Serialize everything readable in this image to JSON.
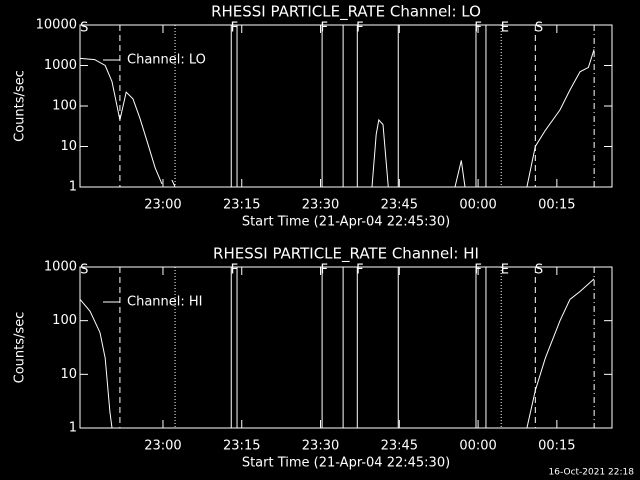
{
  "chart_data": [
    {
      "type": "line",
      "title": "RHESSI PARTICLE_RATE Channel: LO",
      "xlabel": "Start Time (21-Apr-04 22:45:30)",
      "ylabel": "Counts/sec",
      "x": [
        -15.8,
        -13.0,
        -11.0,
        -9.7,
        -8.2,
        -7.0,
        -5.7,
        -4.4,
        -2.9,
        -1.5,
        -0.2,
        null,
        1.7,
        2.3,
        null,
        39.8,
        40.6,
        41.1,
        41.9,
        42.9,
        null,
        55.6,
        56.8,
        57.5,
        null,
        69.3,
        70.9,
        72.8,
        75.6,
        77.5,
        79.4,
        81.0,
        82.1
      ],
      "series": [
        {
          "name": "Channel: LO",
          "color": "#ffffff",
          "values": [
            1500,
            1400,
            1000,
            400,
            45,
            220,
            150,
            50,
            12,
            3,
            1.2,
            null,
            1.5,
            1,
            null,
            1,
            20,
            45,
            35,
            1,
            null,
            1,
            4.5,
            1,
            null,
            1,
            10,
            25,
            80,
            250,
            700,
            900,
            2500
          ]
        }
      ],
      "xlim": [
        -15.8,
        85.5
      ],
      "xticks": [
        {
          "value": 0,
          "label": "23:00"
        },
        {
          "value": 15,
          "label": "23:15"
        },
        {
          "value": 30,
          "label": "23:30"
        },
        {
          "value": 45,
          "label": "23:45"
        },
        {
          "value": 60,
          "label": "00:00"
        },
        {
          "value": 75,
          "label": "00:15"
        }
      ],
      "ylim": [
        1,
        10000
      ],
      "yticks": [
        1,
        10,
        100,
        1000,
        10000
      ],
      "log_y": true,
      "vlines": [
        {
          "x": -8.2,
          "style": "dashed"
        },
        {
          "x": 2.3,
          "style": "dotted"
        },
        {
          "x": 13.0,
          "style": "solid"
        },
        {
          "x": 14.1,
          "style": "solid"
        },
        {
          "x": 30.3,
          "style": "solid"
        },
        {
          "x": 34.3,
          "style": "solid"
        },
        {
          "x": 37.0,
          "style": "solid"
        },
        {
          "x": 44.8,
          "style": "solid"
        },
        {
          "x": 59.6,
          "style": "solid"
        },
        {
          "x": 61.5,
          "style": "solid"
        },
        {
          "x": 64.4,
          "style": "dotted"
        },
        {
          "x": 70.9,
          "style": "dashed"
        },
        {
          "x": 82.1,
          "style": "dashdot"
        }
      ],
      "annotations": [
        {
          "text": "S",
          "x": -15.0
        },
        {
          "text": "F",
          "x": 13.6
        },
        {
          "text": "F",
          "x": 30.7
        },
        {
          "text": "F",
          "x": 37.5
        },
        {
          "text": "F",
          "x": 60.0
        },
        {
          "text": "E",
          "x": 65.1
        },
        {
          "text": "S",
          "x": 71.6
        }
      ]
    },
    {
      "type": "line",
      "title": "RHESSI PARTICLE_RATE Channel: HI",
      "xlabel": "Start Time (21-Apr-04 22:45:30)",
      "ylabel": "Counts/sec",
      "x": [
        -15.8,
        -13.9,
        -12.0,
        -11.0,
        -10.1,
        -9.7,
        null,
        69.3,
        70.9,
        72.8,
        75.6,
        77.5,
        79.4,
        82.1
      ],
      "series": [
        {
          "name": "Channel: HI",
          "color": "#ffffff",
          "values": [
            250,
            150,
            60,
            20,
            2,
            1,
            null,
            1,
            5,
            20,
            100,
            250,
            350,
            600
          ]
        }
      ],
      "xlim": [
        -15.8,
        85.5
      ],
      "xticks": [
        {
          "value": 0,
          "label": "23:00"
        },
        {
          "value": 15,
          "label": "23:15"
        },
        {
          "value": 30,
          "label": "23:30"
        },
        {
          "value": 45,
          "label": "23:45"
        },
        {
          "value": 60,
          "label": "00:00"
        },
        {
          "value": 75,
          "label": "00:15"
        }
      ],
      "ylim": [
        1,
        1000
      ],
      "yticks": [
        1,
        10,
        100,
        1000
      ],
      "log_y": true,
      "vlines": [
        {
          "x": -8.2,
          "style": "dashed"
        },
        {
          "x": 2.3,
          "style": "dotted"
        },
        {
          "x": 13.0,
          "style": "solid"
        },
        {
          "x": 14.1,
          "style": "solid"
        },
        {
          "x": 30.3,
          "style": "solid"
        },
        {
          "x": 34.3,
          "style": "solid"
        },
        {
          "x": 37.0,
          "style": "solid"
        },
        {
          "x": 44.8,
          "style": "solid"
        },
        {
          "x": 59.6,
          "style": "solid"
        },
        {
          "x": 61.5,
          "style": "solid"
        },
        {
          "x": 64.4,
          "style": "dotted"
        },
        {
          "x": 70.9,
          "style": "dashed"
        },
        {
          "x": 82.1,
          "style": "dashdot"
        }
      ],
      "annotations": [
        {
          "text": "S",
          "x": -15.0
        },
        {
          "text": "F",
          "x": 13.6
        },
        {
          "text": "F",
          "x": 30.7
        },
        {
          "text": "F",
          "x": 37.5
        },
        {
          "text": "F",
          "x": 60.0
        },
        {
          "text": "E",
          "x": 65.1
        },
        {
          "text": "S",
          "x": 71.6
        }
      ]
    }
  ],
  "footer": "16-Oct-2021 22:18"
}
